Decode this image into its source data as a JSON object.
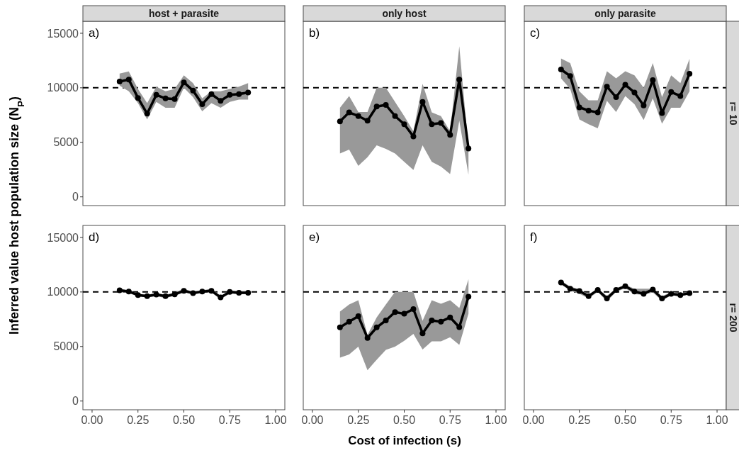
{
  "chart_data": [
    {
      "type": "line",
      "title": "host + parasite",
      "ylabel": "Inferred value host population size (N$_{P}$)",
      "annotations": [
        "a)"
      ],
      "x": [
        0.15,
        0.2,
        0.25,
        0.3,
        0.35,
        0.4,
        0.45,
        0.5,
        0.55,
        0.6,
        0.65,
        0.7,
        0.75,
        0.8,
        0.85
      ],
      "xlim": [
        -0.05,
        1.05
      ],
      "ylim": [
        -800,
        16100
      ],
      "yticks": [
        0,
        5000,
        10000,
        15000
      ],
      "tick_labels": "y",
      "marker": "circle",
      "line_style": "solid",
      "ref_lines": [
        {
          "axis": "y",
          "value": 10000,
          "line_style": "dashed",
          "color": "#000000"
        }
      ],
      "series": [
        {
          "color": "#000000",
          "values": [
            10580,
            10750,
            9070,
            7630,
            9350,
            9030,
            8970,
            10500,
            9740,
            8490,
            9420,
            8810,
            9350,
            9420,
            9570
          ],
          "upper": [
            11300,
            11500,
            9900,
            8600,
            10100,
            9680,
            9900,
            11140,
            10430,
            9030,
            9680,
            9680,
            9900,
            10100,
            10430
          ],
          "lower": [
            10200,
            9680,
            8600,
            7090,
            8700,
            8170,
            8170,
            10000,
            9140,
            7840,
            8600,
            8170,
            8700,
            8920,
            8920
          ]
        }
      ]
    },
    {
      "type": "line",
      "title": "only host",
      "annotations": [
        "b)"
      ],
      "x": [
        0.15,
        0.2,
        0.25,
        0.3,
        0.35,
        0.4,
        0.45,
        0.5,
        0.55,
        0.6,
        0.65,
        0.7,
        0.75,
        0.8,
        0.85
      ],
      "xlim": [
        -0.05,
        1.05
      ],
      "ylim": [
        -800,
        16100
      ],
      "tick_labels": false,
      "marker": "circle",
      "line_style": "solid",
      "ref_lines": [
        {
          "axis": "y",
          "value": 10000,
          "line_style": "dashed",
          "color": "#000000"
        }
      ],
      "series": [
        {
          "color": "#000000",
          "values": [
            6920,
            7740,
            7410,
            6980,
            8280,
            8430,
            7410,
            6660,
            5540,
            8710,
            6660,
            6770,
            5690,
            10750,
            4440
          ],
          "upper": [
            8170,
            9250,
            7780,
            7780,
            10000,
            10000,
            8710,
            7410,
            6010,
            10370,
            7740,
            7410,
            6010,
            13810,
            4500
          ],
          "lower": [
            3970,
            4330,
            2840,
            3640,
            4720,
            4400,
            3970,
            3210,
            2460,
            4720,
            3210,
            2780,
            2090,
            6980,
            2030
          ]
        }
      ]
    },
    {
      "type": "line",
      "title": "only parasite",
      "subtitle": "r= 10",
      "annotations": [
        "c)"
      ],
      "x": [
        0.15,
        0.2,
        0.25,
        0.3,
        0.35,
        0.4,
        0.45,
        0.5,
        0.55,
        0.6,
        0.65,
        0.7,
        0.75,
        0.8,
        0.85
      ],
      "xlim": [
        -0.05,
        1.05
      ],
      "ylim": [
        -800,
        16100
      ],
      "tick_labels": false,
      "marker": "circle",
      "line_style": "solid",
      "ref_lines": [
        {
          "axis": "y",
          "value": 10000,
          "line_style": "dashed",
          "color": "#000000"
        }
      ],
      "series": [
        {
          "color": "#000000",
          "values": [
            11680,
            11080,
            8210,
            7910,
            7740,
            10110,
            9140,
            10280,
            9570,
            8380,
            10710,
            7690,
            9610,
            9250,
            11290
          ],
          "upper": [
            12690,
            12260,
            9680,
            8860,
            8860,
            11510,
            10860,
            11510,
            11140,
            10000,
            12260,
            9140,
            11140,
            10430,
            12650
          ],
          "lower": [
            10860,
            9900,
            7090,
            6660,
            6290,
            8810,
            7780,
            9250,
            8490,
            7050,
            9030,
            6700,
            8170,
            8170,
            9680
          ]
        }
      ]
    },
    {
      "type": "line",
      "annotations": [
        "d)"
      ],
      "x": [
        0.15,
        0.2,
        0.25,
        0.3,
        0.35,
        0.4,
        0.45,
        0.5,
        0.55,
        0.6,
        0.65,
        0.7,
        0.75,
        0.8,
        0.85
      ],
      "xlim": [
        -0.05,
        1.05
      ],
      "xticks": [
        {
          "value": 0,
          "label": "0.00"
        },
        {
          "value": 0.25,
          "label": "0.25"
        },
        {
          "value": 0.5,
          "label": "0.50"
        },
        {
          "value": 0.75,
          "label": "0.75"
        },
        {
          "value": 1,
          "label": "1.00"
        }
      ],
      "ylim": [
        -800,
        16100
      ],
      "yticks": [
        0,
        5000,
        10000,
        15000
      ],
      "marker": "circle",
      "line_style": "solid",
      "ref_lines": [
        {
          "axis": "y",
          "value": 10000,
          "line_style": "dashed",
          "color": "#000000"
        }
      ],
      "series": [
        {
          "color": "#000000",
          "values": [
            10150,
            10040,
            9720,
            9610,
            9760,
            9610,
            9780,
            10110,
            9890,
            10040,
            10110,
            9500,
            10000,
            9930,
            9930
          ],
          "upper": [
            10300,
            10150,
            9850,
            9750,
            9900,
            9750,
            9950,
            10300,
            10000,
            10150,
            10300,
            9650,
            10100,
            10050,
            10050
          ],
          "lower": [
            10000,
            9900,
            9600,
            9500,
            9600,
            9450,
            9650,
            9950,
            9800,
            9950,
            9950,
            9350,
            9850,
            9800,
            9800
          ]
        }
      ]
    },
    {
      "type": "line",
      "xlabel": "Cost of infection (s)",
      "annotations": [
        "e)"
      ],
      "x": [
        0.15,
        0.2,
        0.25,
        0.3,
        0.35,
        0.4,
        0.45,
        0.5,
        0.55,
        0.6,
        0.65,
        0.7,
        0.75,
        0.8,
        0.85
      ],
      "xlim": [
        -0.05,
        1.05
      ],
      "xticks": [
        {
          "value": 0,
          "label": "0.00"
        },
        {
          "value": 0.25,
          "label": "0.25"
        },
        {
          "value": 0.5,
          "label": "0.50"
        },
        {
          "value": 0.75,
          "label": "0.75"
        },
        {
          "value": 1,
          "label": "1.00"
        }
      ],
      "ylim": [
        -800,
        16100
      ],
      "tick_labels": "x",
      "marker": "circle",
      "line_style": "solid",
      "ref_lines": [
        {
          "axis": "y",
          "value": 10000,
          "line_style": "dashed",
          "color": "#000000"
        }
      ],
      "series": [
        {
          "color": "#000000",
          "values": [
            6750,
            7280,
            7780,
            5780,
            6750,
            7390,
            8150,
            8000,
            8430,
            6210,
            7390,
            7280,
            7670,
            6770,
            9570
          ],
          "upper": [
            8210,
            8860,
            9250,
            6060,
            7670,
            8860,
            10000,
            10000,
            10000,
            7350,
            9250,
            8920,
            9250,
            8530,
            11160
          ],
          "lower": [
            3970,
            4270,
            4980,
            2820,
            3790,
            4700,
            4980,
            5520,
            6160,
            4720,
            5470,
            5470,
            5840,
            5150,
            8000
          ]
        }
      ]
    },
    {
      "type": "line",
      "subtitle": "r= 200",
      "annotations": [
        "f)"
      ],
      "x": [
        0.15,
        0.2,
        0.25,
        0.3,
        0.35,
        0.4,
        0.45,
        0.5,
        0.55,
        0.6,
        0.65,
        0.7,
        0.75,
        0.8,
        0.85
      ],
      "xlim": [
        -0.05,
        1.05
      ],
      "xticks": [
        {
          "value": 0,
          "label": "0.00"
        },
        {
          "value": 0.25,
          "label": "0.25"
        },
        {
          "value": 0.5,
          "label": "0.50"
        },
        {
          "value": 0.75,
          "label": "0.75"
        },
        {
          "value": 1,
          "label": "1.00"
        }
      ],
      "ylim": [
        -800,
        16100
      ],
      "tick_labels": "x",
      "marker": "circle",
      "line_style": "solid",
      "ref_lines": [
        {
          "axis": "y",
          "value": 10000,
          "line_style": "dashed",
          "color": "#000000"
        }
      ],
      "series": [
        {
          "color": "#000000",
          "values": [
            10860,
            10300,
            10090,
            9610,
            10190,
            9400,
            10190,
            10520,
            10040,
            9830,
            10220,
            9400,
            9830,
            9720,
            9890
          ],
          "upper": [
            11050,
            10500,
            10250,
            9800,
            10300,
            9650,
            10350,
            10650,
            10300,
            10300,
            10300,
            9600,
            10000,
            9900,
            10000
          ],
          "lower": [
            10700,
            10100,
            9850,
            9400,
            10000,
            9150,
            10000,
            10350,
            9800,
            9750,
            9950,
            9200,
            9700,
            9600,
            9800
          ]
        }
      ]
    }
  ]
}
